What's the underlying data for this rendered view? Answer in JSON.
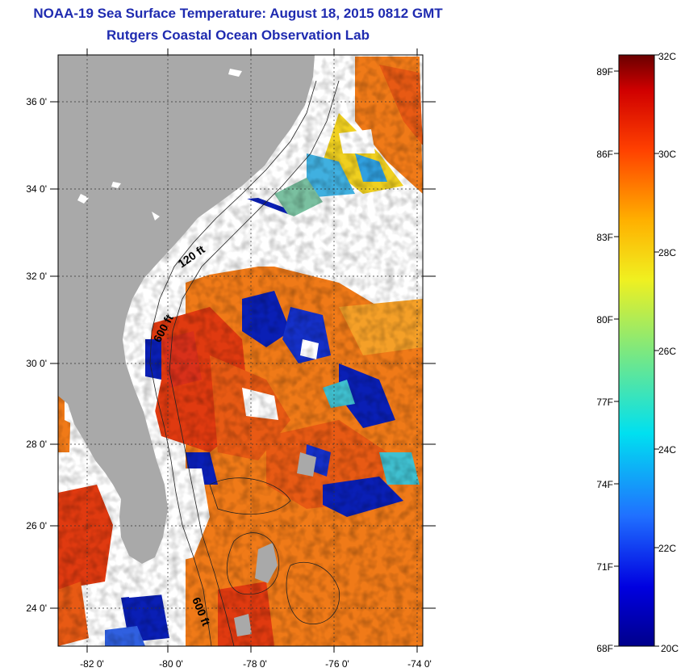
{
  "header": {
    "title": "NOAA-19 Sea Surface Temperature:  August 18, 2015 0812 GMT",
    "subtitle": "Rutgers Coastal Ocean Observation Lab"
  },
  "map": {
    "lat_labels": [
      "36 0'",
      "34 0'",
      "32 0'",
      "30 0'",
      "28 0'",
      "26 0'",
      "24 0'"
    ],
    "lon_labels": [
      "-82 0'",
      "-80 0'",
      "-78 0'",
      "-76 0'",
      "-74 0'"
    ],
    "contour_labels": [
      "120 ft",
      "600 ft",
      "600 ft"
    ]
  },
  "colorbar": {
    "fahrenheit_labels": [
      "89F",
      "86F",
      "83F",
      "80F",
      "77F",
      "74F",
      "71F",
      "68F"
    ],
    "celsius_labels": [
      "32C",
      "30C",
      "28C",
      "26C",
      "24C",
      "22C",
      "20C"
    ],
    "range_c": [
      20,
      32
    ]
  },
  "colors": {
    "land": "#a9a9a9",
    "cloud": "#ffffff",
    "warm": "#e03a10",
    "orange": "#f07a18",
    "cool": "#0a1fb5",
    "title": "#1f2bb0"
  }
}
